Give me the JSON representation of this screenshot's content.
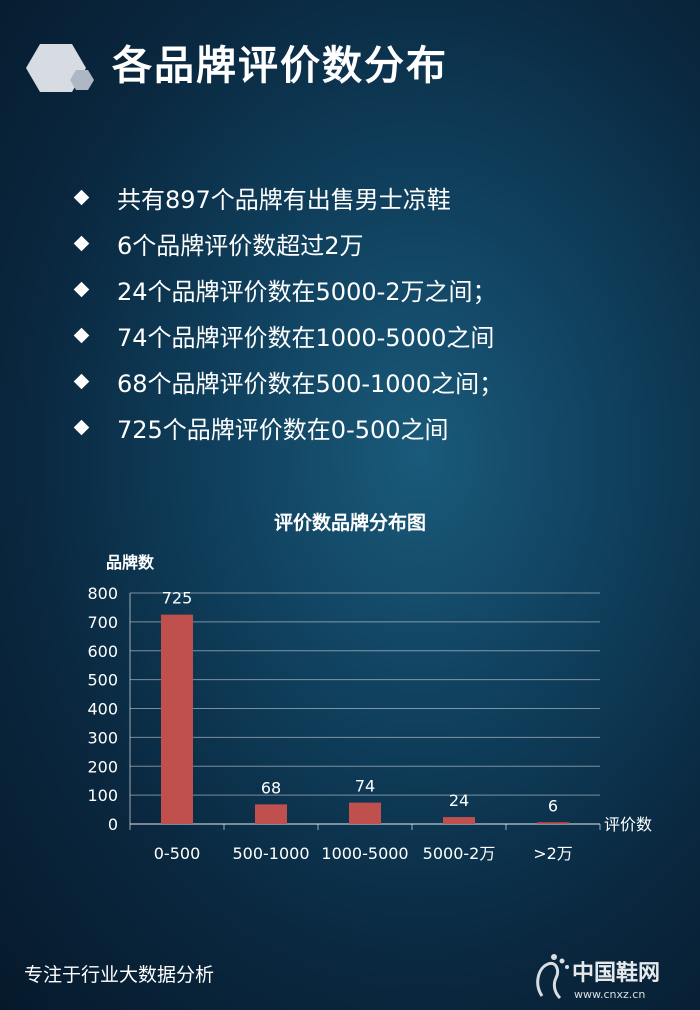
{
  "header": {
    "title": "各品牌评价数分布"
  },
  "bullets": [
    "共有897个品牌有出售男士凉鞋",
    "6个品牌评价数超过2万",
    "24个品牌评价数在5000-2万之间；",
    "74个品牌评价数在1000-5000之间",
    "68个品牌评价数在500-1000之间；",
    "725个品牌评价数在0-500之间"
  ],
  "chart_data": {
    "type": "bar",
    "title": "评价数品牌分布图",
    "ylabel": "品牌数",
    "xlabel": "评价数",
    "categories": [
      "0-500",
      "500-1000",
      "1000-5000",
      "5000-2万",
      ">2万"
    ],
    "values": [
      725,
      68,
      74,
      24,
      6
    ],
    "data_labels": [
      "725",
      "68",
      "74",
      "24",
      "6"
    ],
    "ylim": [
      0,
      800
    ],
    "yticks": [
      0,
      100,
      200,
      300,
      400,
      500,
      600,
      700,
      800
    ],
    "grid": true,
    "bar_color": "#c0504d"
  },
  "footer": {
    "text": "专注于行业大数据分析"
  },
  "watermark": {
    "text": "中国鞋网",
    "url": "www.cnxz.cn"
  }
}
